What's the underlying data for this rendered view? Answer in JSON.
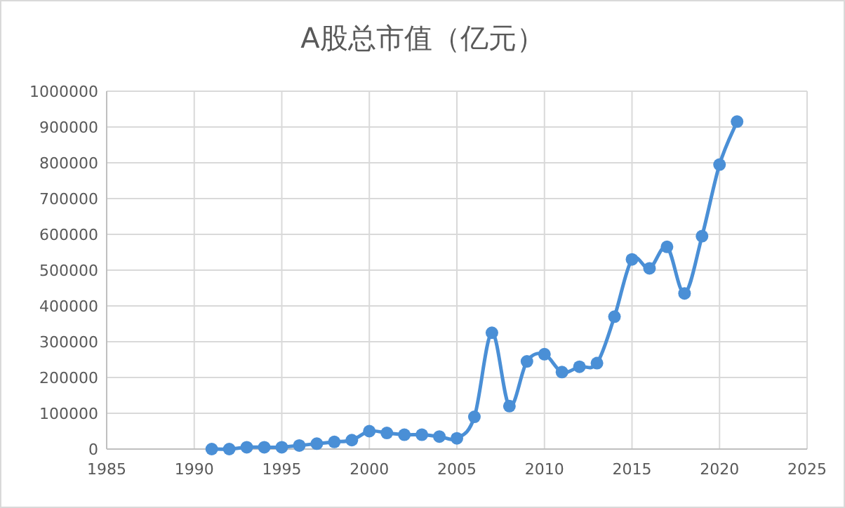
{
  "chart_data": {
    "type": "line",
    "title": "A股总市值（亿元）",
    "x": [
      1991,
      1992,
      1993,
      1994,
      1995,
      1996,
      1997,
      1998,
      1999,
      2000,
      2001,
      2002,
      2003,
      2004,
      2005,
      2006,
      2007,
      2008,
      2009,
      2010,
      2011,
      2012,
      2013,
      2014,
      2015,
      2016,
      2017,
      2018,
      2019,
      2020,
      2021
    ],
    "series": [
      {
        "color": "#4a8fd6",
        "values": [
          0,
          0,
          5000,
          5000,
          5000,
          10000,
          15000,
          20000,
          25000,
          50000,
          45000,
          40000,
          40000,
          35000,
          30000,
          90000,
          325000,
          120000,
          245000,
          265000,
          215000,
          230000,
          240000,
          370000,
          530000,
          505000,
          565000,
          435000,
          595000,
          795000,
          915000
        ]
      }
    ],
    "xlim": [
      1985,
      2025
    ],
    "xticks": [
      1985,
      1990,
      1995,
      2000,
      2005,
      2010,
      2015,
      2020,
      2025
    ],
    "ylim": [
      0,
      1000000
    ],
    "yticks": [
      0,
      100000,
      200000,
      300000,
      400000,
      500000,
      600000,
      700000,
      800000,
      900000,
      1000000
    ],
    "grid": true,
    "marker": "circle",
    "line_style": "solid"
  }
}
